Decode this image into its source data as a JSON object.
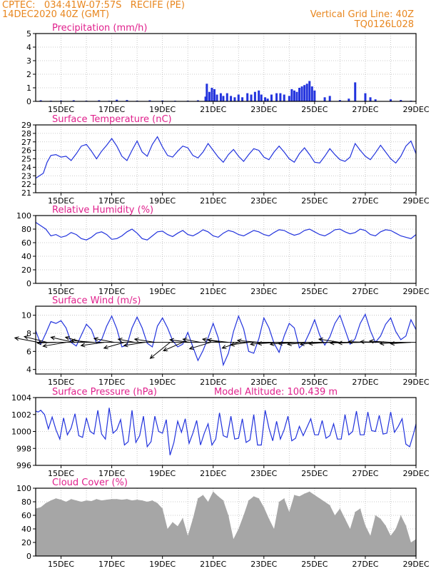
{
  "header": {
    "line1": "CPTEC:   034:41W-07:57S   RECIFE (PE)",
    "line2": "14DEC2020 40Z (GMT)",
    "grid_note": "Vertical Grid Line: 40Z",
    "code": "TQ0126L028"
  },
  "colors": {
    "header": "#e8861e",
    "title": "#e0208c",
    "series": "#2233dd",
    "cloud": "#a6a6a6",
    "arrow": "#000000",
    "grid": "#bbbbbb"
  },
  "chart_data": [
    {
      "id": "precip",
      "type": "bar",
      "title": "Precipitation (mm/h)",
      "x_range": [
        14.0,
        29.0
      ],
      "x_unit": "day of December 2020",
      "xticks": [
        "15DEC",
        "17DEC",
        "19DEC",
        "21DEC",
        "23DEC",
        "25DEC",
        "27DEC",
        "29DEC"
      ],
      "ylim": [
        0,
        5
      ],
      "yticks": [
        "0",
        "1",
        "2",
        "3",
        "4",
        "5"
      ],
      "x": [
        14.2,
        14.6,
        15.0,
        15.5,
        16.0,
        16.5,
        16.9,
        17.2,
        17.6,
        18.0,
        18.5,
        19.0,
        19.5,
        20.0,
        20.4,
        20.7,
        20.75,
        20.85,
        20.95,
        21.05,
        21.15,
        21.3,
        21.4,
        21.55,
        21.7,
        21.85,
        22.0,
        22.15,
        22.35,
        22.5,
        22.65,
        22.8,
        22.9,
        23.05,
        23.15,
        23.3,
        23.5,
        23.65,
        23.8,
        24.0,
        24.1,
        24.2,
        24.3,
        24.4,
        24.5,
        24.6,
        24.7,
        24.8,
        24.9,
        25.0,
        25.4,
        25.6,
        26.0,
        26.35,
        26.6,
        27.0,
        27.2,
        27.4,
        28.0,
        28.4,
        28.8
      ],
      "values": [
        0.08,
        0.05,
        0.06,
        0.08,
        0.05,
        0.08,
        0.05,
        0.12,
        0.1,
        0.05,
        0.08,
        0.06,
        0.05,
        0.05,
        0.08,
        0.35,
        1.3,
        0.7,
        1.0,
        0.9,
        0.5,
        0.6,
        0.4,
        0.6,
        0.4,
        0.3,
        0.5,
        0.3,
        0.6,
        0.5,
        0.7,
        0.8,
        0.5,
        0.3,
        0.2,
        0.5,
        0.6,
        0.6,
        0.5,
        0.4,
        0.9,
        0.8,
        0.7,
        1.0,
        1.1,
        1.2,
        1.3,
        1.5,
        1.1,
        0.8,
        0.3,
        0.4,
        0.1,
        0.2,
        1.4,
        0.6,
        0.3,
        0.15,
        0.15,
        0.1,
        0.05
      ]
    },
    {
      "id": "temperature",
      "type": "line",
      "title": "Surface Temperature (nC)",
      "x_range": [
        14.0,
        29.0
      ],
      "ylim": [
        21,
        29
      ],
      "yticks": [
        "21",
        "22",
        "23",
        "24",
        "25",
        "26",
        "27",
        "28",
        "29"
      ],
      "xticks": [
        "15DEC",
        "17DEC",
        "19DEC",
        "21DEC",
        "23DEC",
        "25DEC",
        "27DEC",
        "29DEC"
      ],
      "x": [
        14.0,
        14.15,
        14.3,
        14.45,
        14.6,
        14.8,
        15.0,
        15.2,
        15.4,
        15.6,
        15.8,
        16.0,
        16.2,
        16.4,
        16.6,
        16.8,
        17.0,
        17.2,
        17.4,
        17.6,
        17.8,
        18.0,
        18.2,
        18.4,
        18.6,
        18.8,
        19.0,
        19.2,
        19.4,
        19.6,
        19.8,
        20.0,
        20.2,
        20.4,
        20.6,
        20.8,
        21.0,
        21.2,
        21.4,
        21.6,
        21.8,
        22.0,
        22.2,
        22.4,
        22.6,
        22.8,
        23.0,
        23.2,
        23.4,
        23.6,
        23.8,
        24.0,
        24.2,
        24.4,
        24.6,
        24.8,
        25.0,
        25.2,
        25.4,
        25.6,
        25.8,
        26.0,
        26.2,
        26.4,
        26.6,
        26.8,
        27.0,
        27.2,
        27.4,
        27.6,
        27.8,
        28.0,
        28.2,
        28.4,
        28.6,
        28.8,
        29.0
      ],
      "values": [
        22.7,
        23.0,
        23.3,
        24.6,
        25.4,
        25.5,
        25.2,
        25.3,
        24.8,
        25.6,
        26.5,
        26.7,
        25.9,
        25.0,
        25.9,
        26.6,
        27.4,
        26.5,
        25.3,
        24.8,
        26.0,
        27.1,
        25.8,
        25.3,
        26.7,
        27.6,
        26.4,
        25.4,
        25.2,
        25.9,
        26.5,
        26.3,
        25.4,
        25.1,
        25.8,
        26.8,
        26.0,
        25.2,
        24.6,
        25.5,
        26.1,
        25.3,
        24.7,
        25.5,
        26.2,
        26.0,
        25.2,
        24.9,
        25.8,
        26.5,
        25.8,
        25.0,
        24.6,
        25.6,
        26.3,
        25.5,
        24.6,
        24.5,
        25.3,
        26.2,
        25.5,
        24.9,
        24.7,
        25.2,
        26.8,
        26.0,
        25.3,
        24.9,
        25.7,
        26.6,
        25.8,
        25.0,
        24.5,
        25.3,
        26.5,
        27.1,
        25.6
      ]
    },
    {
      "id": "humidity",
      "type": "line",
      "title": "Relative Humidity (%)",
      "x_range": [
        14.0,
        29.0
      ],
      "ylim": [
        0,
        100
      ],
      "yticks": [
        "0",
        "20",
        "40",
        "60",
        "80",
        "100"
      ],
      "xticks": [
        "15DEC",
        "17DEC",
        "19DEC",
        "21DEC",
        "23DEC",
        "25DEC",
        "27DEC",
        "29DEC"
      ],
      "x": [
        14.0,
        14.2,
        14.4,
        14.6,
        14.8,
        15.0,
        15.2,
        15.4,
        15.6,
        15.8,
        16.0,
        16.2,
        16.4,
        16.6,
        16.8,
        17.0,
        17.2,
        17.4,
        17.6,
        17.8,
        18.0,
        18.2,
        18.4,
        18.6,
        18.8,
        19.0,
        19.2,
        19.4,
        19.6,
        19.8,
        20.0,
        20.2,
        20.4,
        20.6,
        20.8,
        21.0,
        21.2,
        21.4,
        21.6,
        21.8,
        22.0,
        22.2,
        22.4,
        22.6,
        22.8,
        23.0,
        23.2,
        23.4,
        23.6,
        23.8,
        24.0,
        24.2,
        24.4,
        24.6,
        24.8,
        25.0,
        25.2,
        25.4,
        25.6,
        25.8,
        26.0,
        26.2,
        26.4,
        26.6,
        26.8,
        27.0,
        27.2,
        27.4,
        27.6,
        27.8,
        28.0,
        28.2,
        28.4,
        28.6,
        28.8,
        29.0
      ],
      "values": [
        90,
        85,
        80,
        70,
        72,
        68,
        70,
        75,
        72,
        66,
        64,
        68,
        74,
        76,
        72,
        65,
        66,
        70,
        76,
        80,
        74,
        66,
        64,
        70,
        76,
        77,
        72,
        69,
        74,
        78,
        72,
        70,
        74,
        79,
        76,
        70,
        68,
        74,
        78,
        76,
        72,
        70,
        74,
        78,
        76,
        72,
        70,
        75,
        79,
        78,
        74,
        71,
        73,
        78,
        80,
        76,
        72,
        70,
        74,
        79,
        80,
        76,
        73,
        75,
        80,
        78,
        72,
        70,
        76,
        79,
        78,
        74,
        70,
        68,
        66,
        72
      ]
    },
    {
      "id": "wind",
      "type": "line",
      "title": "Surface Wind (m/s)",
      "x_range": [
        14.0,
        29.0
      ],
      "ylim": [
        3.5,
        11
      ],
      "yticks": [
        "4",
        "6",
        "8",
        "10"
      ],
      "xticks": [
        "15DEC",
        "17DEC",
        "19DEC",
        "21DEC",
        "23DEC",
        "25DEC",
        "27DEC",
        "29DEC"
      ],
      "x": [
        14.0,
        14.2,
        14.4,
        14.6,
        14.8,
        15.0,
        15.2,
        15.4,
        15.6,
        15.8,
        16.0,
        16.2,
        16.4,
        16.6,
        16.8,
        17.0,
        17.2,
        17.4,
        17.6,
        17.8,
        18.0,
        18.2,
        18.4,
        18.6,
        18.8,
        19.0,
        19.2,
        19.4,
        19.6,
        19.8,
        20.0,
        20.2,
        20.4,
        20.6,
        20.8,
        21.0,
        21.2,
        21.4,
        21.6,
        21.8,
        22.0,
        22.2,
        22.4,
        22.6,
        22.8,
        23.0,
        23.2,
        23.4,
        23.6,
        23.8,
        24.0,
        24.2,
        24.4,
        24.6,
        24.8,
        25.0,
        25.2,
        25.4,
        25.6,
        25.8,
        26.0,
        26.2,
        26.4,
        26.6,
        26.8,
        27.0,
        27.2,
        27.4,
        27.6,
        27.8,
        28.0,
        28.2,
        28.4,
        28.6,
        28.8,
        29.0
      ],
      "values": [
        8.3,
        6.8,
        8.0,
        9.3,
        9.1,
        9.4,
        8.6,
        7.0,
        6.6,
        7.8,
        9.0,
        8.4,
        6.9,
        7.3,
        8.8,
        9.9,
        8.5,
        6.5,
        6.7,
        8.6,
        9.8,
        8.6,
        6.9,
        6.5,
        8.8,
        9.7,
        8.6,
        7.2,
        6.5,
        6.8,
        8.1,
        6.5,
        5.0,
        6.1,
        7.5,
        9.1,
        7.5,
        4.5,
        5.8,
        8.2,
        9.9,
        8.5,
        6.0,
        5.8,
        7.4,
        9.7,
        8.6,
        6.9,
        5.9,
        7.7,
        9.1,
        8.6,
        6.4,
        6.9,
        8.1,
        9.5,
        7.8,
        6.7,
        7.6,
        9.1,
        10.0,
        8.4,
        6.8,
        7.4,
        9.1,
        10.1,
        8.3,
        7.0,
        7.7,
        9.0,
        9.7,
        8.2,
        7.3,
        7.7,
        9.5,
        8.4
      ],
      "vectors": {
        "x": [
          14.1,
          14.45,
          14.8,
          15.2,
          15.5,
          15.9,
          16.3,
          16.7,
          17.1,
          17.5,
          17.9,
          18.3,
          18.7,
          19.3,
          19.8,
          20.1,
          20.5,
          20.9,
          21.3,
          21.6,
          22.0,
          22.4,
          22.8,
          23.2,
          23.6,
          24.0,
          24.4,
          24.8,
          25.2,
          25.6,
          26.0,
          26.4,
          26.8,
          27.2,
          27.6,
          28.0,
          28.4,
          28.8
        ],
        "u": [
          -8.0,
          -7.8,
          -6.4,
          -7.9,
          -7.8,
          -6.3,
          -7.8,
          -7.9,
          -6.9,
          -7.0,
          -5.6,
          -7.1,
          -6.9,
          -6.8,
          -6.6,
          -7.0,
          -6.0,
          -7.2,
          -6.2,
          -7.1,
          -5.6,
          -6.2,
          -7.3,
          -6.3,
          -7.3,
          -6.5,
          -7.2,
          -7.5,
          -6.6,
          -7.2,
          -7.2,
          -6.8,
          -7.5,
          -7.5,
          -6.9,
          -7.2,
          -7.1,
          -7.0
        ],
        "v": [
          0.7,
          0.9,
          -0.1,
          -0.6,
          0.8,
          0.8,
          0.3,
          -0.5,
          0.6,
          -0.9,
          0.5,
          -0.5,
          0.5,
          -2.5,
          -1.3,
          0.4,
          0.5,
          -1.0,
          0.5,
          0.4,
          -0.9,
          -0.4,
          0.3,
          -0.3,
          -0.2,
          -0.3,
          -0.2,
          -0.3,
          -0.3,
          -0.2,
          0.5,
          -0.1,
          -0.1,
          0.1,
          0.1,
          0.2,
          -0.2,
          -0.2
        ]
      }
    },
    {
      "id": "pressure",
      "type": "line",
      "title": "Surface Pressure (hPa)",
      "subtitle": "Model Altitude: 100.439 m",
      "x_range": [
        14.0,
        29.0
      ],
      "ylim": [
        996,
        1004
      ],
      "yticks": [
        "996",
        "998",
        "1000",
        "1002",
        "1004"
      ],
      "xticks": [
        "15DEC",
        "17DEC",
        "19DEC",
        "21DEC",
        "23DEC",
        "25DEC",
        "27DEC",
        "29DEC"
      ],
      "x": [
        14.0,
        14.1,
        14.2,
        14.35,
        14.5,
        14.65,
        14.8,
        14.95,
        15.1,
        15.25,
        15.4,
        15.55,
        15.7,
        15.85,
        16.0,
        16.15,
        16.3,
        16.45,
        16.6,
        16.75,
        16.9,
        17.05,
        17.2,
        17.35,
        17.5,
        17.65,
        17.8,
        17.95,
        18.1,
        18.25,
        18.4,
        18.55,
        18.7,
        18.85,
        19.0,
        19.15,
        19.3,
        19.45,
        19.6,
        19.75,
        19.9,
        20.05,
        20.2,
        20.35,
        20.5,
        20.65,
        20.8,
        20.95,
        21.1,
        21.25,
        21.4,
        21.55,
        21.7,
        21.85,
        22.0,
        22.15,
        22.3,
        22.45,
        22.6,
        22.75,
        22.9,
        23.05,
        23.2,
        23.35,
        23.5,
        23.65,
        23.8,
        23.95,
        24.1,
        24.25,
        24.4,
        24.55,
        24.7,
        24.85,
        25.0,
        25.15,
        25.3,
        25.45,
        25.6,
        25.75,
        25.9,
        26.05,
        26.2,
        26.35,
        26.5,
        26.65,
        26.8,
        26.95,
        27.1,
        27.25,
        27.4,
        27.55,
        27.7,
        27.85,
        28.0,
        28.15,
        28.3,
        28.45,
        28.6,
        28.75,
        28.9,
        29.0
      ],
      "values": [
        1002.4,
        1002.3,
        1002.5,
        1002.0,
        1000.3,
        1001.7,
        1000.2,
        999.1,
        1001.6,
        999.6,
        1000.4,
        1002.1,
        999.5,
        999.3,
        1001.6,
        1000.0,
        999.7,
        1002.5,
        999.7,
        999.1,
        1002.8,
        999.8,
        1000.2,
        1001.4,
        998.4,
        998.8,
        1002.5,
        998.7,
        999.5,
        1001.8,
        998.2,
        998.8,
        1001.8,
        1000.0,
        999.8,
        1001.4,
        997.2,
        998.7,
        1001.2,
        999.9,
        1001.5,
        998.6,
        999.8,
        1001.3,
        998.4,
        999.8,
        1000.9,
        998.4,
        999.1,
        1002.2,
        999.5,
        999.3,
        1001.8,
        999.1,
        999.2,
        1001.5,
        998.7,
        999.0,
        1002.0,
        998.4,
        998.4,
        1002.5,
        1000.4,
        998.9,
        1001.2,
        999.1,
        1000.2,
        1001.8,
        998.9,
        999.2,
        1000.6,
        999.5,
        1000.5,
        1001.5,
        999.6,
        999.6,
        1001.3,
        999.2,
        999.5,
        1000.9,
        999.1,
        999.1,
        1002.0,
        999.6,
        1000.0,
        1002.4,
        999.6,
        999.6,
        1002.3,
        1000.1,
        1000.0,
        1001.9,
        999.7,
        999.8,
        1002.3,
        999.9,
        1000.6,
        1001.5,
        998.5,
        998.2,
        999.7,
        1000.9
      ]
    },
    {
      "id": "cloud",
      "type": "bar",
      "title": "Cloud Cover (%)",
      "x_range": [
        14.0,
        29.0
      ],
      "ylim": [
        0,
        100
      ],
      "yticks": [
        "0",
        "20",
        "40",
        "60",
        "80",
        "100"
      ],
      "xticks": [
        "15DEC",
        "17DEC",
        "19DEC",
        "21DEC",
        "23DEC",
        "25DEC",
        "27DEC",
        "29DEC"
      ],
      "x": [
        14.0,
        14.2,
        14.4,
        14.6,
        14.8,
        15.0,
        15.2,
        15.4,
        15.6,
        15.8,
        16.0,
        16.2,
        16.4,
        16.6,
        16.8,
        17.0,
        17.2,
        17.4,
        17.6,
        17.8,
        18.0,
        18.2,
        18.4,
        18.6,
        18.8,
        19.0,
        19.2,
        19.4,
        19.6,
        19.8,
        20.0,
        20.2,
        20.4,
        20.6,
        20.8,
        21.0,
        21.2,
        21.4,
        21.6,
        21.8,
        22.0,
        22.2,
        22.4,
        22.6,
        22.8,
        23.0,
        23.2,
        23.4,
        23.6,
        23.8,
        24.0,
        24.2,
        24.4,
        24.6,
        24.8,
        25.0,
        25.2,
        25.4,
        25.6,
        25.8,
        26.0,
        26.2,
        26.4,
        26.6,
        26.8,
        27.0,
        27.2,
        27.4,
        27.6,
        27.8,
        28.0,
        28.2,
        28.4,
        28.6,
        28.8,
        29.0
      ],
      "values": [
        70,
        72,
        78,
        82,
        85,
        83,
        80,
        84,
        82,
        80,
        82,
        81,
        84,
        82,
        83,
        84,
        84,
        83,
        84,
        82,
        83,
        82,
        80,
        82,
        78,
        70,
        40,
        50,
        44,
        56,
        30,
        55,
        85,
        90,
        80,
        95,
        88,
        82,
        60,
        25,
        40,
        60,
        82,
        88,
        85,
        72,
        55,
        40,
        80,
        85,
        65,
        90,
        88,
        92,
        95,
        90,
        85,
        80,
        75,
        60,
        70,
        55,
        40,
        65,
        70,
        45,
        30,
        60,
        55,
        45,
        30,
        40,
        60,
        45,
        20,
        25
      ]
    }
  ]
}
